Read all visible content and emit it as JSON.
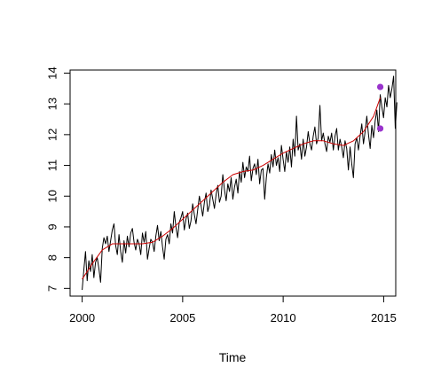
{
  "chart_data": {
    "type": "line",
    "title": "",
    "xlabel": "Time",
    "ylabel": "",
    "xlim": [
      1999.4,
      2015.6
    ],
    "ylim": [
      6.75,
      14.1
    ],
    "x_ticks": [
      2000,
      2005,
      2010,
      2015
    ],
    "y_ticks": [
      7,
      8,
      9,
      10,
      11,
      12,
      13,
      14
    ],
    "grid": false,
    "legend": "none",
    "series": [
      {
        "kind": "observed",
        "color": "#000000",
        "x_start": 2000.0,
        "x_step": 0.0833,
        "values": [
          6.95,
          7.6,
          8.2,
          7.25,
          7.9,
          7.55,
          8.1,
          7.35,
          7.85,
          8.0,
          7.65,
          7.2,
          8.3,
          8.65,
          8.45,
          8.7,
          8.2,
          8.55,
          8.9,
          9.1,
          8.4,
          8.1,
          8.75,
          8.2,
          7.85,
          8.55,
          8.15,
          8.7,
          8.35,
          8.8,
          8.95,
          8.5,
          8.25,
          8.6,
          8.45,
          8.1,
          8.8,
          8.5,
          8.85,
          7.95,
          8.3,
          8.6,
          8.5,
          8.2,
          8.7,
          9.05,
          8.55,
          8.85,
          8.35,
          7.95,
          8.6,
          8.75,
          8.45,
          9.1,
          8.8,
          9.5,
          9.0,
          8.65,
          9.15,
          9.3,
          9.5,
          8.9,
          9.25,
          9.45,
          8.95,
          9.2,
          9.75,
          9.4,
          9.1,
          9.55,
          10.0,
          9.7,
          9.35,
          9.8,
          10.1,
          9.5,
          9.7,
          10.2,
          9.9,
          9.6,
          10.05,
          10.35,
          9.8,
          10.0,
          10.7,
          10.2,
          9.85,
          10.4,
          10.15,
          10.6,
          9.9,
          10.3,
          10.55,
          10.1,
          10.8,
          10.45,
          11.1,
          10.6,
          10.95,
          10.8,
          11.3,
          10.5,
          10.9,
          11.05,
          10.7,
          11.2,
          10.4,
          10.85,
          10.9,
          9.9,
          10.6,
          11.05,
          10.75,
          11.35,
          10.95,
          11.5,
          11.0,
          11.25,
          10.8,
          11.65,
          11.2,
          10.8,
          11.45,
          11.1,
          11.6,
          10.95,
          11.85,
          11.3,
          12.6,
          11.5,
          11.7,
          11.2,
          11.85,
          11.3,
          11.6,
          12.1,
          11.7,
          11.5,
          11.95,
          12.25,
          11.7,
          11.9,
          12.95,
          11.8,
          12.05,
          11.7,
          11.45,
          11.95,
          11.75,
          12.05,
          11.5,
          11.95,
          12.2,
          11.5,
          11.85,
          11.6,
          11.25,
          11.8,
          11.55,
          10.85,
          11.6,
          11.05,
          10.6,
          11.7,
          11.9,
          11.5,
          11.95,
          12.35,
          11.7,
          12.1,
          12.6,
          12.0,
          11.55,
          12.3,
          11.9,
          12.45,
          12.8,
          12.1,
          13.3,
          12.9,
          12.55,
          13.2,
          12.9,
          13.6,
          13.2,
          13.5,
          13.9,
          12.2,
          13.05
        ]
      },
      {
        "kind": "smoothed",
        "color": "#cc0000",
        "x": [
          2000.0,
          2000.5,
          2001.0,
          2001.5,
          2002.0,
          2002.5,
          2003.0,
          2003.5,
          2004.0,
          2004.5,
          2005.0,
          2005.5,
          2006.0,
          2006.5,
          2007.0,
          2007.5,
          2008.0,
          2008.5,
          2009.0,
          2009.5,
          2010.0,
          2010.5,
          2011.0,
          2011.5,
          2012.0,
          2012.5,
          2013.0,
          2013.5,
          2014.0,
          2014.5,
          2014.83
        ],
        "values": [
          7.3,
          7.8,
          8.25,
          8.45,
          8.45,
          8.45,
          8.45,
          8.5,
          8.7,
          8.95,
          9.25,
          9.55,
          9.85,
          10.15,
          10.45,
          10.7,
          10.8,
          10.85,
          11.0,
          11.2,
          11.4,
          11.55,
          11.7,
          11.8,
          11.8,
          11.7,
          11.65,
          11.8,
          12.1,
          12.6,
          13.2
        ]
      }
    ],
    "markers": {
      "color": "#9933cc",
      "points": [
        {
          "x": 2014.83,
          "y": 13.55
        },
        {
          "x": 2014.83,
          "y": 12.2
        }
      ]
    }
  }
}
